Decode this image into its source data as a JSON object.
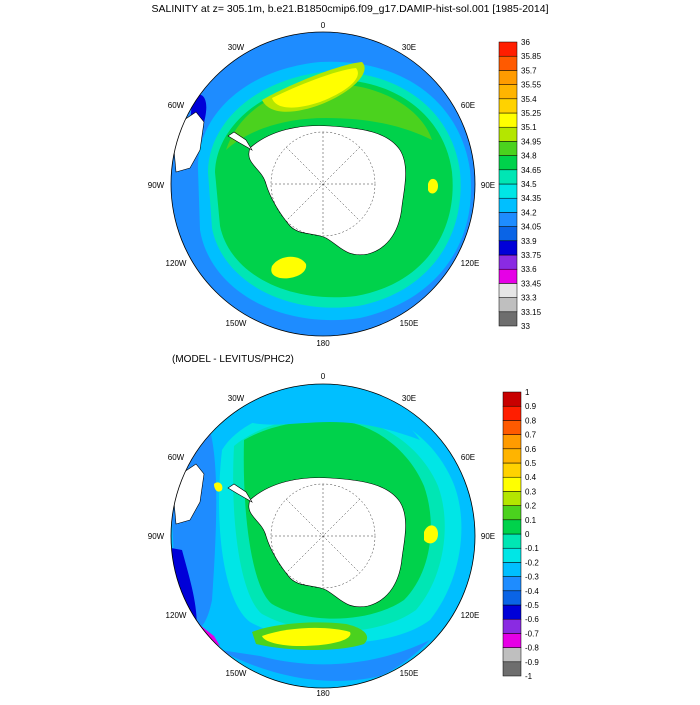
{
  "top_panel": {
    "title": "SALINITY at z= 305.1m, b.e21.B1850cmip6.f09_g17.DAMIP-hist-sol.001 [1985-2014]",
    "lon_labels": [
      "0",
      "30E",
      "60E",
      "90E",
      "120E",
      "150E",
      "180",
      "150W",
      "120W",
      "90W",
      "60W",
      "30W"
    ],
    "colorbar": {
      "labels": [
        "33",
        "33.15",
        "33.3",
        "33.45",
        "33.6",
        "33.75",
        "33.9",
        "34.05",
        "34.2",
        "34.35",
        "34.5",
        "34.65",
        "34.8",
        "34.95",
        "35.1",
        "35.25",
        "35.4",
        "35.55",
        "35.7",
        "35.85",
        "36"
      ],
      "colors": [
        "#6e6e6e",
        "#bfbfbf",
        "#e6e6e6",
        "#e600e6",
        "#8a2be2",
        "#0000d8",
        "#0a64e6",
        "#1e8cff",
        "#00bfff",
        "#00e6e6",
        "#00e6b4",
        "#00d24b",
        "#4bd21e",
        "#b4e600",
        "#ffff00",
        "#ffd200",
        "#ffb400",
        "#ff9b00",
        "#ff5a00",
        "#ff1e00"
      ]
    }
  },
  "bottom_panel": {
    "title": "(MODEL - LEVITUS/PHC2)",
    "lon_labels": [
      "0",
      "30E",
      "60E",
      "90E",
      "120E",
      "150E",
      "180",
      "150W",
      "120W",
      "90W",
      "60W",
      "30W"
    ],
    "colorbar": {
      "labels": [
        "-1",
        "-0.9",
        "-0.8",
        "-0.7",
        "-0.6",
        "-0.5",
        "-0.4",
        "-0.3",
        "-0.2",
        "-0.1",
        "0",
        "0.1",
        "0.2",
        "0.3",
        "0.4",
        "0.5",
        "0.6",
        "0.7",
        "0.8",
        "0.9",
        "1"
      ],
      "colors": [
        "#6e6e6e",
        "#bfbfbf",
        "#e600e6",
        "#8a2be2",
        "#0000d8",
        "#0a64e6",
        "#1e8cff",
        "#00bfff",
        "#00e6e6",
        "#00e6b4",
        "#00d24b",
        "#4bd21e",
        "#b4e600",
        "#ffff00",
        "#ffd200",
        "#ffb400",
        "#ff9b00",
        "#ff5a00",
        "#ff1e00",
        "#c80000"
      ]
    }
  }
}
